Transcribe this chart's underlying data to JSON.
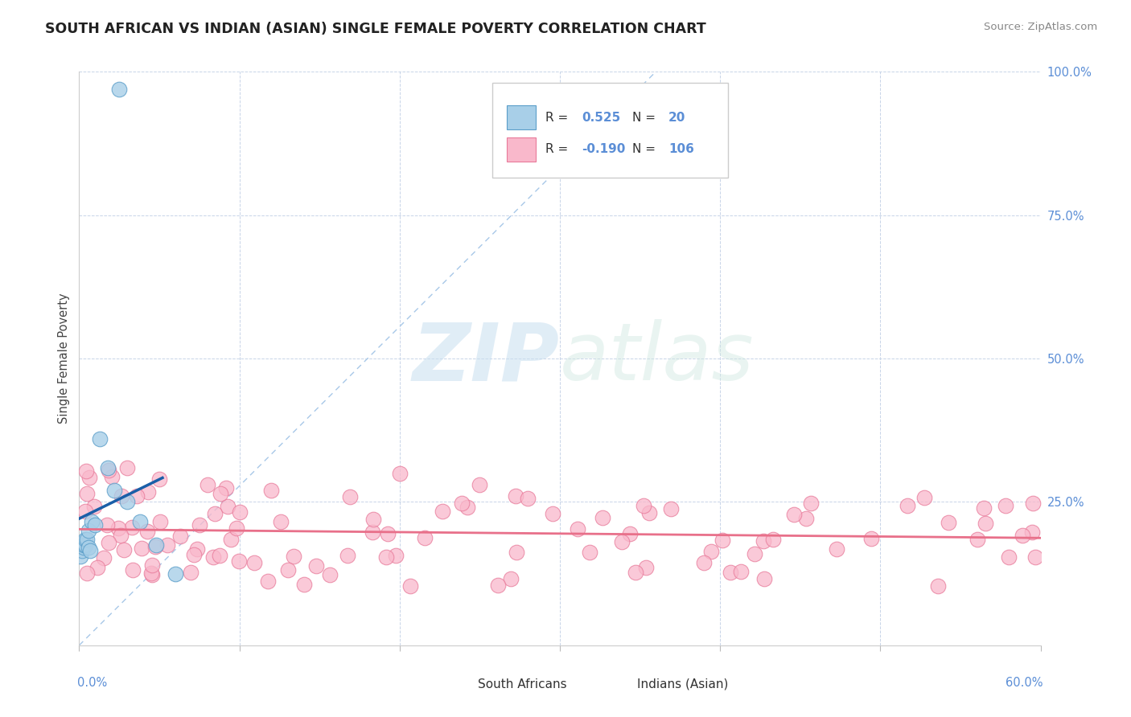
{
  "title": "SOUTH AFRICAN VS INDIAN (ASIAN) SINGLE FEMALE POVERTY CORRELATION CHART",
  "source": "Source: ZipAtlas.com",
  "ylabel": "Single Female Poverty",
  "legend_sa": "South Africans",
  "legend_ind": "Indians (Asian)",
  "r_sa": 0.525,
  "n_sa": 20,
  "r_ind": -0.19,
  "n_ind": 106,
  "sa_color": "#a8cfe8",
  "ind_color": "#f9b8cb",
  "sa_edge": "#5b9ec9",
  "ind_edge": "#e87a9a",
  "trend_sa_color": "#1a5fa8",
  "trend_ind_color": "#e8708a",
  "diag_color": "#a8c8e8",
  "watermark_color": "#daedf8",
  "background": "#ffffff",
  "grid_color": "#c8d4e8",
  "ytick_color": "#5b8ed6",
  "xtick_color": "#5b8ed6",
  "title_color": "#222222",
  "source_color": "#888888",
  "ylabel_color": "#444444"
}
